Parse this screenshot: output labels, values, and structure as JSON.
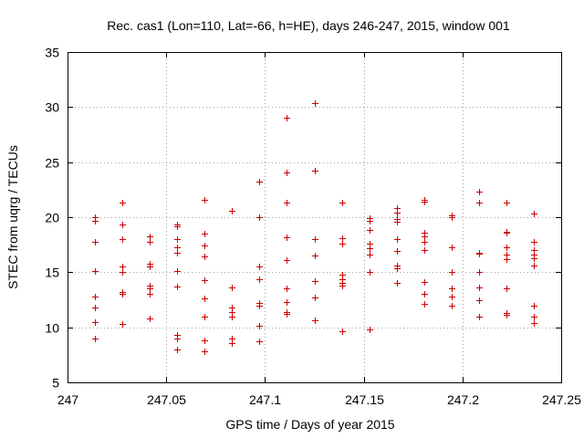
{
  "chart_data": {
    "type": "scatter",
    "title": "Rec. cas1 (Lon=110, Lat=-66, h=HE), days 246-247, 2015, window 001",
    "xlabel": "GPS time / Days of year 2015",
    "ylabel": "STEC from uqrg / TECUs",
    "xlim": [
      247,
      247.25
    ],
    "ylim": [
      5,
      35
    ],
    "xticks": [
      247,
      247.05,
      247.1,
      247.15,
      247.2,
      247.25
    ],
    "xtick_labels": [
      "247",
      "247.05",
      "247.1",
      "247.15",
      "247.2",
      "247.25"
    ],
    "yticks": [
      5,
      10,
      15,
      20,
      25,
      30,
      35
    ],
    "ytick_labels": [
      "5",
      "10",
      "15",
      "20",
      "25",
      "30",
      "35"
    ],
    "grid": true,
    "marker": "+",
    "color": "#cc0000",
    "series": [
      {
        "points": [
          [
            247.0139,
            20.0
          ],
          [
            247.0139,
            19.7
          ],
          [
            247.0139,
            17.8
          ],
          [
            247.0139,
            15.1
          ],
          [
            247.0139,
            12.8
          ],
          [
            247.0139,
            11.8
          ],
          [
            247.0139,
            10.5
          ],
          [
            247.0139,
            9.0
          ],
          [
            247.0278,
            21.3
          ],
          [
            247.0278,
            19.3
          ],
          [
            247.0278,
            18.0
          ],
          [
            247.0278,
            15.5
          ],
          [
            247.0278,
            15.0
          ],
          [
            247.0278,
            13.2
          ],
          [
            247.0278,
            13.0
          ],
          [
            247.0278,
            10.3
          ],
          [
            247.0417,
            18.3
          ],
          [
            247.0417,
            17.8
          ],
          [
            247.0417,
            15.8
          ],
          [
            247.0417,
            15.5
          ],
          [
            247.0417,
            13.8
          ],
          [
            247.0417,
            13.5
          ],
          [
            247.0417,
            13.0
          ],
          [
            247.0417,
            10.8
          ],
          [
            247.0556,
            19.3
          ],
          [
            247.0556,
            19.2
          ],
          [
            247.0556,
            18.0
          ],
          [
            247.0556,
            17.3
          ],
          [
            247.0556,
            16.8
          ],
          [
            247.0556,
            15.1
          ],
          [
            247.0556,
            13.7
          ],
          [
            247.0556,
            9.3
          ],
          [
            247.0556,
            9.0
          ],
          [
            247.0556,
            8.0
          ],
          [
            247.0694,
            21.6
          ],
          [
            247.0694,
            18.5
          ],
          [
            247.0694,
            17.4
          ],
          [
            247.0694,
            16.4
          ],
          [
            247.0694,
            14.3
          ],
          [
            247.0694,
            12.6
          ],
          [
            247.0694,
            11.0
          ],
          [
            247.0694,
            8.8
          ],
          [
            247.0694,
            7.8
          ],
          [
            247.0833,
            20.6
          ],
          [
            247.0833,
            13.6
          ],
          [
            247.0833,
            11.8
          ],
          [
            247.0833,
            11.4
          ],
          [
            247.0833,
            11.0
          ],
          [
            247.0833,
            9.0
          ],
          [
            247.0833,
            8.6
          ],
          [
            247.0972,
            23.2
          ],
          [
            247.0972,
            20.0
          ],
          [
            247.0972,
            15.5
          ],
          [
            247.0972,
            14.4
          ],
          [
            247.0972,
            12.2
          ],
          [
            247.0972,
            12.0
          ],
          [
            247.0972,
            10.1
          ],
          [
            247.0972,
            8.7
          ],
          [
            247.1111,
            29.0
          ],
          [
            247.1111,
            24.1
          ],
          [
            247.1111,
            21.3
          ],
          [
            247.1111,
            18.2
          ],
          [
            247.1111,
            16.1
          ],
          [
            247.1111,
            13.5
          ],
          [
            247.1111,
            12.3
          ],
          [
            247.1111,
            11.4
          ],
          [
            247.1111,
            11.2
          ],
          [
            247.125,
            30.4
          ],
          [
            247.125,
            24.2
          ],
          [
            247.125,
            18.0
          ],
          [
            247.125,
            16.5
          ],
          [
            247.125,
            14.2
          ],
          [
            247.125,
            12.7
          ],
          [
            247.125,
            10.6
          ],
          [
            247.1389,
            21.3
          ],
          [
            247.1389,
            18.1
          ],
          [
            247.1389,
            17.6
          ],
          [
            247.1389,
            14.8
          ],
          [
            247.1389,
            14.4
          ],
          [
            247.1389,
            14.0
          ],
          [
            247.1389,
            13.8
          ],
          [
            247.1389,
            9.6
          ],
          [
            247.1528,
            19.9
          ],
          [
            247.1528,
            19.7
          ],
          [
            247.1528,
            18.8
          ],
          [
            247.1528,
            17.6
          ],
          [
            247.1528,
            17.2
          ],
          [
            247.1528,
            16.6
          ],
          [
            247.1528,
            15.0
          ],
          [
            247.1528,
            9.8
          ],
          [
            247.1667,
            20.8
          ],
          [
            247.1667,
            20.4
          ],
          [
            247.1667,
            19.8
          ],
          [
            247.1667,
            19.6
          ],
          [
            247.1667,
            18.0
          ],
          [
            247.1667,
            16.9
          ],
          [
            247.1667,
            15.6
          ],
          [
            247.1667,
            15.4
          ],
          [
            247.1667,
            14.0
          ],
          [
            247.1806,
            21.6
          ],
          [
            247.1806,
            21.4
          ],
          [
            247.1806,
            18.6
          ],
          [
            247.1806,
            18.3
          ],
          [
            247.1806,
            17.8
          ],
          [
            247.1806,
            17.0
          ],
          [
            247.1806,
            14.1
          ],
          [
            247.1806,
            13.0
          ],
          [
            247.1806,
            12.1
          ],
          [
            247.1944,
            20.2
          ],
          [
            247.1944,
            20.0
          ],
          [
            247.1944,
            17.3
          ],
          [
            247.1944,
            15.0
          ],
          [
            247.1944,
            13.5
          ],
          [
            247.1944,
            12.8
          ],
          [
            247.1944,
            12.0
          ],
          [
            247.2083,
            22.3
          ],
          [
            247.2083,
            21.3
          ],
          [
            247.2083,
            16.8
          ],
          [
            247.2083,
            16.7
          ],
          [
            247.2083,
            15.0
          ],
          [
            247.2083,
            13.6
          ],
          [
            247.2083,
            12.5
          ],
          [
            247.2083,
            11.0
          ],
          [
            247.2222,
            21.3
          ],
          [
            247.2222,
            18.7
          ],
          [
            247.2222,
            18.6
          ],
          [
            247.2222,
            17.3
          ],
          [
            247.2222,
            16.6
          ],
          [
            247.2222,
            16.2
          ],
          [
            247.2222,
            13.5
          ],
          [
            247.2222,
            11.3
          ],
          [
            247.2222,
            11.1
          ],
          [
            247.2361,
            20.3
          ],
          [
            247.2361,
            17.8
          ],
          [
            247.2361,
            17.0
          ],
          [
            247.2361,
            16.6
          ],
          [
            247.2361,
            16.3
          ],
          [
            247.2361,
            15.6
          ],
          [
            247.2361,
            12.0
          ],
          [
            247.2361,
            11.0
          ],
          [
            247.2361,
            10.4
          ]
        ]
      }
    ]
  }
}
